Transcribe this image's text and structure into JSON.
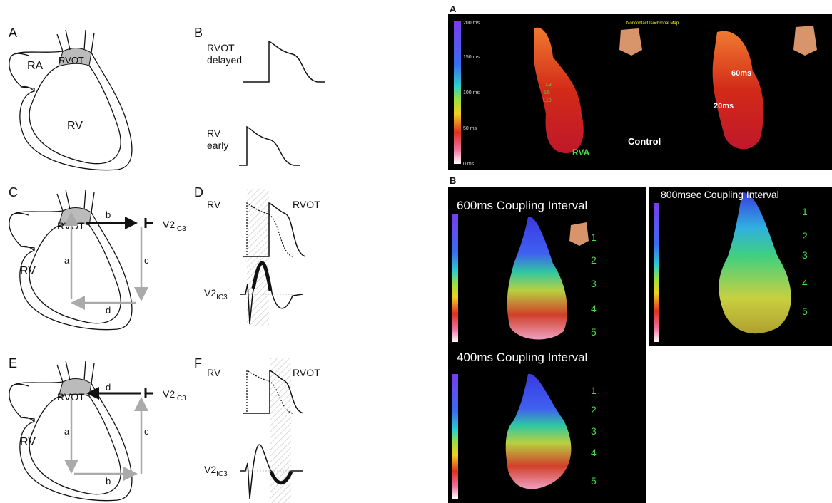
{
  "left": {
    "panel_a": {
      "letter": "A",
      "ra": "RA",
      "rvot": "RVOT",
      "rv": "RV"
    },
    "panel_b": {
      "letter": "B",
      "top_label": [
        "RVOT",
        "delayed"
      ],
      "bottom_label": [
        "RV",
        "early"
      ]
    },
    "panel_c": {
      "letter": "C",
      "rvot": "RVOT",
      "rv": "RV",
      "arrows": [
        "a",
        "b",
        "c",
        "d"
      ],
      "lead": {
        "main": "V2",
        "sub": "IC3"
      }
    },
    "panel_d": {
      "letter": "D",
      "rv": "RV",
      "rvot": "RVOT",
      "lead": {
        "main": "V2",
        "sub": "IC3"
      }
    },
    "panel_e": {
      "letter": "E",
      "rvot": "RVOT",
      "rv": "RV",
      "arrows": [
        "a",
        "b",
        "c",
        "d"
      ],
      "lead": {
        "main": "V2",
        "sub": "IC3"
      }
    },
    "panel_f": {
      "letter": "F",
      "rv": "RV",
      "rvot": "RVOT",
      "lead": {
        "main": "V2",
        "sub": "IC3"
      }
    }
  },
  "right": {
    "panel_a": {
      "letter": "A",
      "scale": [
        "200 ms",
        "150 ms",
        "100 ms",
        "50 ms",
        "0 ms"
      ],
      "map_title": "Noncontact Isochronal Map",
      "leads": [
        "L3",
        "L5",
        "L10"
      ],
      "site": "RVA",
      "condition": "Control",
      "times": [
        "60ms",
        "20ms"
      ]
    },
    "panel_b": {
      "letter": "B",
      "maps": [
        {
          "title": "600ms Coupling Interval",
          "leads": [
            "1",
            "2",
            "3",
            "4",
            "5"
          ]
        },
        {
          "title": "400ms Coupling Interval",
          "leads": [
            "1",
            "2",
            "3",
            "4",
            "5"
          ]
        },
        {
          "title": "800msec Coupling Interval",
          "leads": [
            "1",
            "2",
            "3",
            "4",
            "5"
          ]
        }
      ]
    }
  }
}
